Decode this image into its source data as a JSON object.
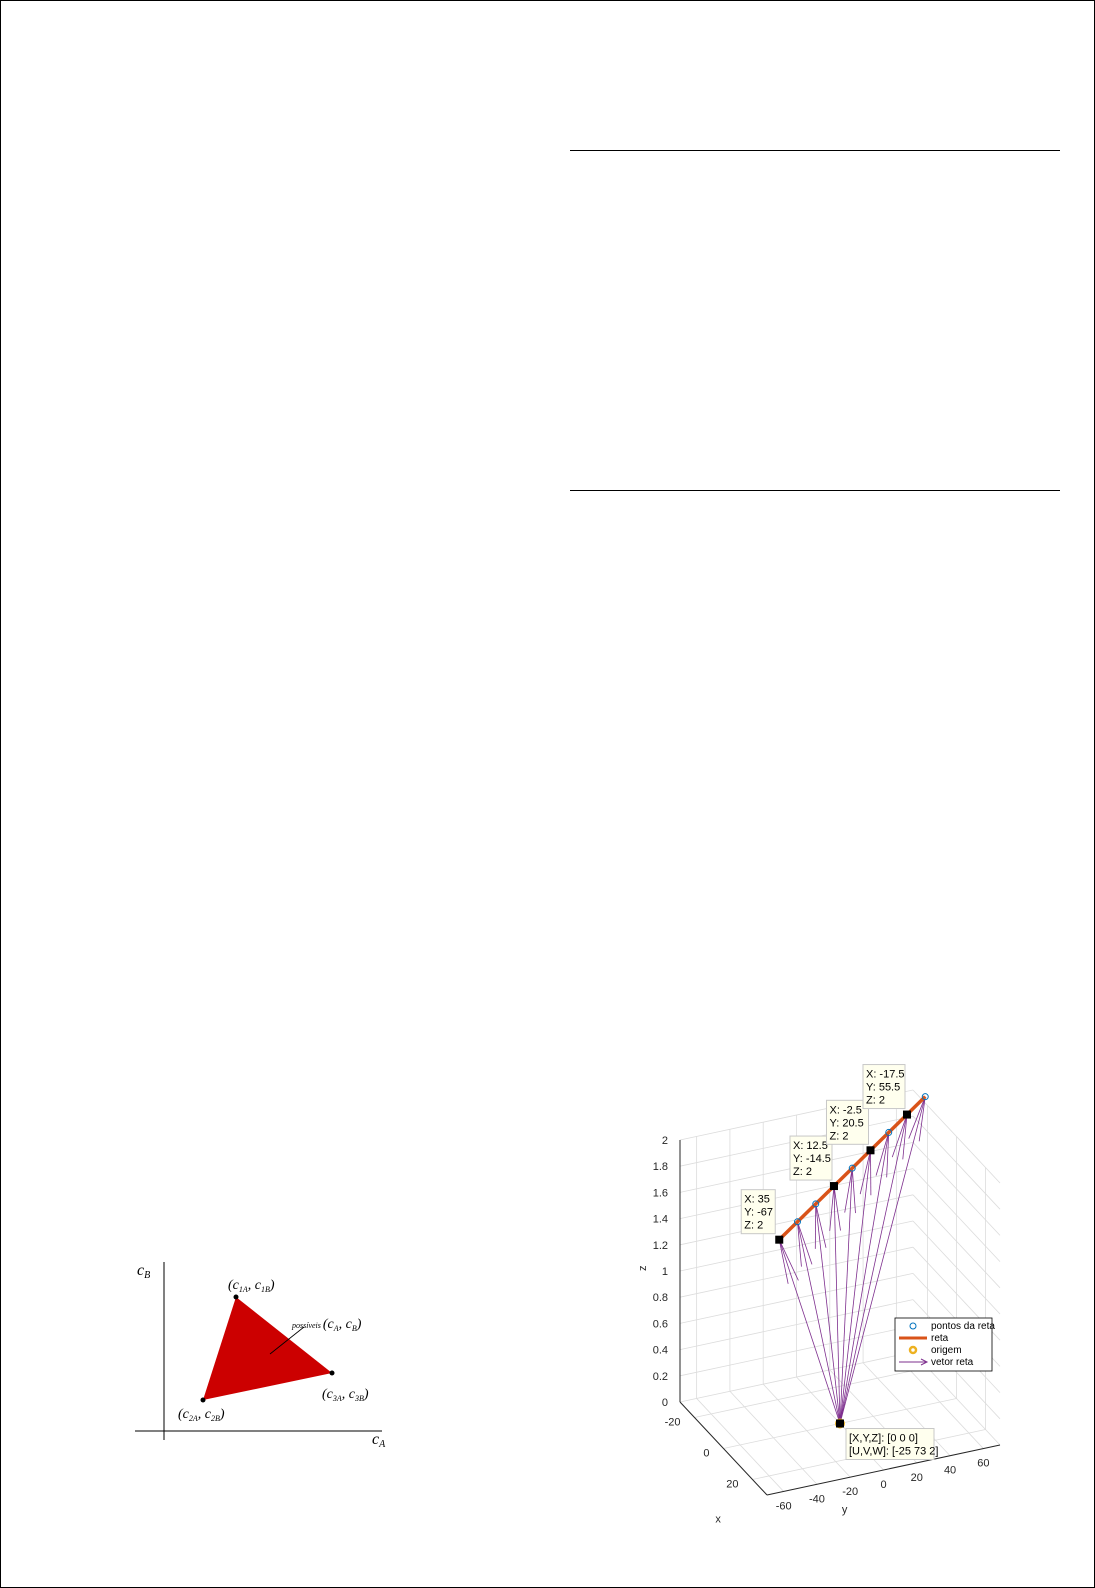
{
  "figure1": {
    "type": "diagram",
    "x_axis_label": "c",
    "x_axis_sub": "A",
    "y_axis_label": "c",
    "y_axis_sub": "B",
    "region_color": "#cc0000",
    "region_label": "possíveis",
    "region_label_expr": [
      "(c",
      "A",
      ", c",
      "B",
      ")"
    ],
    "vertices": [
      {
        "label": [
          "(c",
          "1A",
          ", c",
          "1B",
          ")"
        ]
      },
      {
        "label": [
          "(c",
          "2A",
          ", c",
          "2B",
          ")"
        ]
      },
      {
        "label": [
          "(c",
          "3A",
          ", c",
          "3B",
          ")"
        ]
      }
    ]
  },
  "chart_data": {
    "type": "scatter3d",
    "xlabel": "x",
    "ylabel": "y",
    "zlabel": "z",
    "xlim": [
      -30,
      30
    ],
    "ylim": [
      -70,
      70
    ],
    "zlim": [
      0,
      2
    ],
    "x_ticks": [
      "-20",
      "0",
      "20"
    ],
    "y_ticks": [
      "-60",
      "-40",
      "-20",
      "0",
      "20",
      "40",
      "60"
    ],
    "z_ticks": [
      "0",
      "0.2",
      "0.4",
      "0.6",
      "0.8",
      "1",
      "1.2",
      "1.4",
      "1.6",
      "1.8",
      "2"
    ],
    "grid": true,
    "colors": {
      "points": "#0072bd",
      "line": "#d95319",
      "origin": "#edb120",
      "vectors": "#7e2f8e"
    },
    "legend": {
      "placement": "right",
      "entries": [
        "pontos da reta",
        "reta",
        "origem",
        "vetor reta"
      ]
    },
    "points": {
      "x": [
        35,
        27.5,
        20,
        12.5,
        5,
        -2.5,
        -10,
        -17.5,
        -25
      ],
      "y": [
        -67,
        -49.5,
        -32,
        -14.5,
        3,
        20.5,
        38,
        55.5,
        73
      ],
      "z": [
        2,
        2,
        2,
        2,
        2,
        2,
        2,
        2,
        2
      ]
    },
    "origin": [
      0,
      0,
      0
    ],
    "datatips": [
      {
        "lines": [
          "X: 35",
          "Y: -67",
          "Z: 2"
        ]
      },
      {
        "lines": [
          "X: 12.5",
          "Y: -14.5",
          "Z: 2"
        ]
      },
      {
        "lines": [
          "X: -2.5",
          "Y: 20.5",
          "Z: 2"
        ]
      },
      {
        "lines": [
          "X: -17.5",
          "Y: 55.5",
          "Z: 2"
        ]
      },
      {
        "lines": [
          "[X,Y,Z]: [0 0 0]",
          "[U,V,W]: [-25 73 2]"
        ]
      }
    ]
  }
}
